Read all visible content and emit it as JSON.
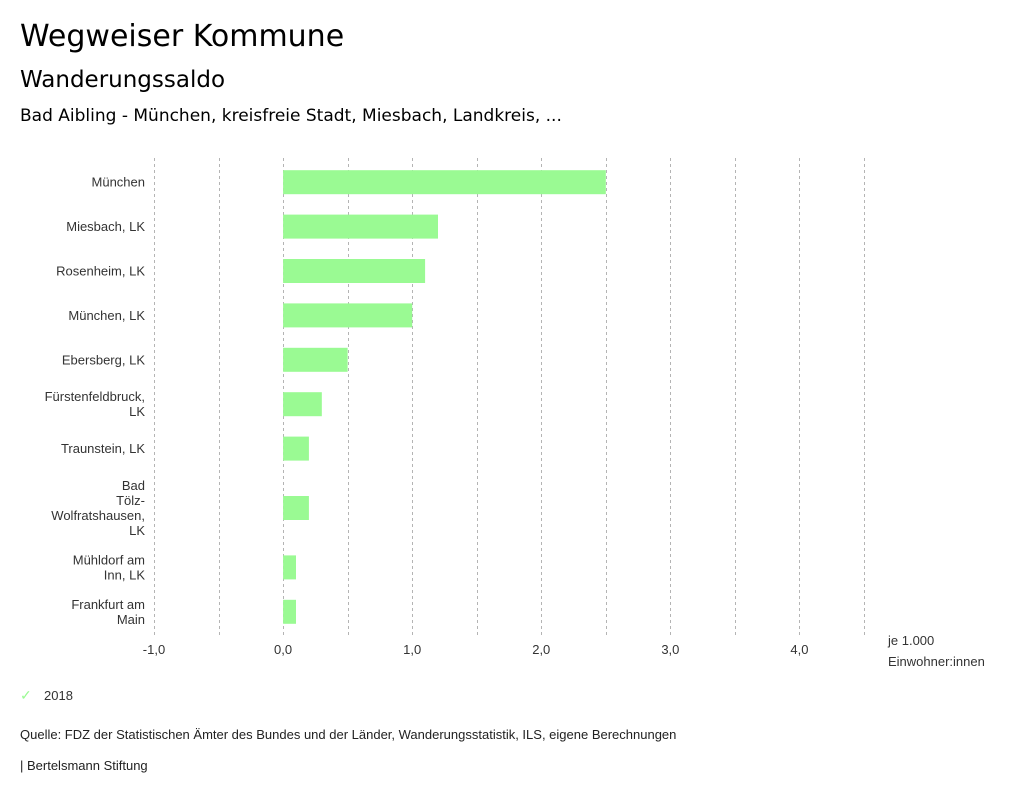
{
  "header": {
    "title": "Wegweiser Kommune",
    "subtitle": "Wanderungssaldo",
    "region": "Bad Aibling - München, kreisfreie Stadt, Miesbach, Landkreis, ..."
  },
  "chart_data": {
    "type": "bar",
    "orientation": "horizontal",
    "title": "Wanderungssaldo",
    "categories": [
      [
        "München"
      ],
      [
        "Miesbach, LK"
      ],
      [
        "Rosenheim, LK"
      ],
      [
        "München, LK"
      ],
      [
        "Ebersberg, LK"
      ],
      [
        "Fürstenfeldbruck,",
        "LK"
      ],
      [
        "Traunstein, LK"
      ],
      [
        "Bad",
        "Tölz-",
        "Wolfratshausen,",
        "LK"
      ],
      [
        "Mühldorf am",
        "Inn, LK"
      ],
      [
        "Frankfurt am",
        "Main"
      ]
    ],
    "series": [
      {
        "name": "2018",
        "color": "#9afa93",
        "values": [
          2.5,
          1.2,
          1.1,
          1.0,
          0.5,
          0.3,
          0.2,
          0.2,
          0.1,
          0.1
        ]
      }
    ],
    "xlim": [
      -1.0,
      4.5
    ],
    "xticks": [
      -1.0,
      0.0,
      1.0,
      2.0,
      3.0,
      4.0
    ],
    "xtick_labels": [
      "-1,0",
      "0,0",
      "1,0",
      "2,0",
      "3,0",
      "4,0"
    ],
    "grid_step": 0.5,
    "grid": true,
    "xlabel": "je 1.000 Einwohner:innen",
    "xlabel_lines": [
      "je 1.000",
      "Einwohner:innen"
    ],
    "legend_position": "bottom-left"
  },
  "legend": {
    "label": "2018",
    "icon": "check-icon"
  },
  "footer": {
    "source": "Quelle: FDZ der Statistischen Ämter des Bundes und der Länder, Wanderungsstatistik, ILS, eigene Berechnungen",
    "credit": "| Bertelsmann Stiftung"
  }
}
